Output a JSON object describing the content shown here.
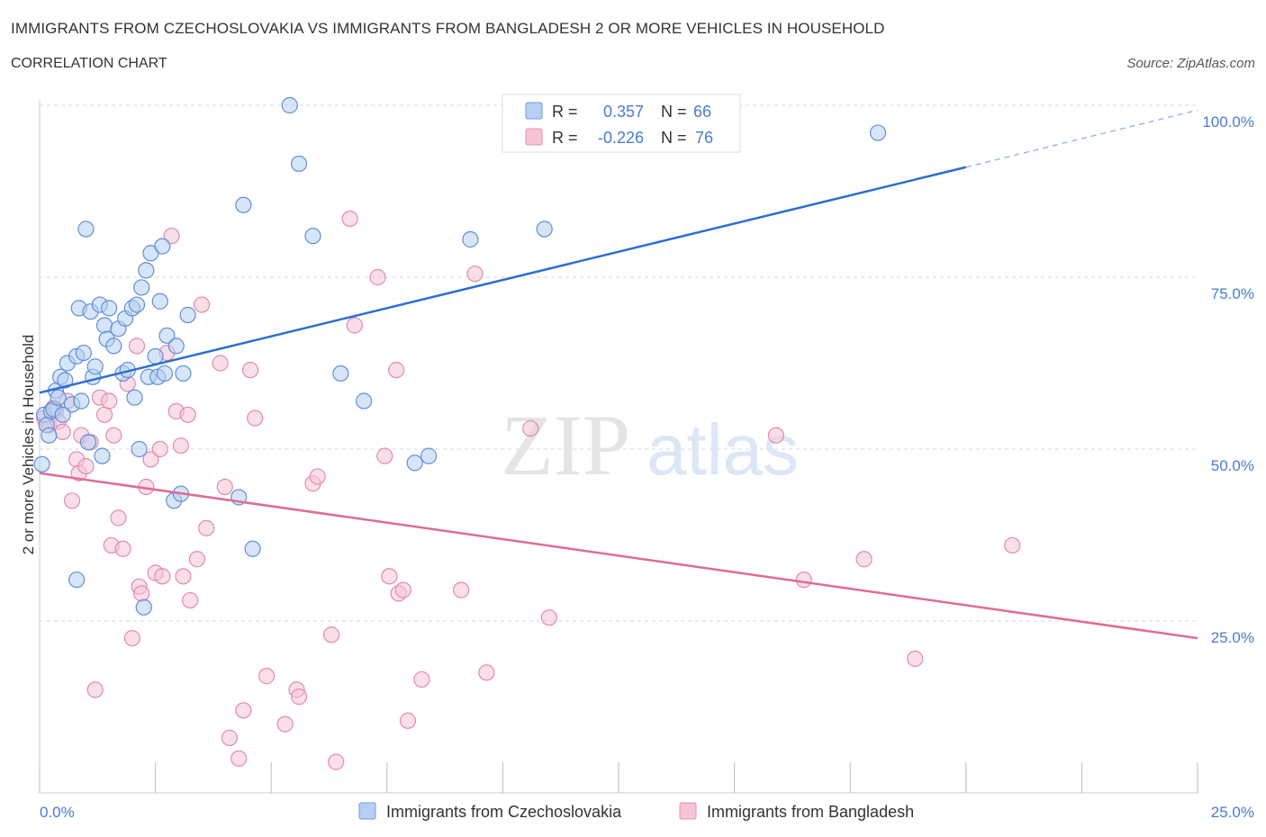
{
  "title": "IMMIGRANTS FROM CZECHOSLOVAKIA VS IMMIGRANTS FROM BANGLADESH 2 OR MORE VEHICLES IN HOUSEHOLD",
  "subtitle": "CORRELATION CHART",
  "source": "Source: ZipAtlas.com",
  "watermark": {
    "zip": "ZIP",
    "atlas": "atlas"
  },
  "colors": {
    "blue": "#4a7bd0",
    "blue_fill": "#b7cff3",
    "blue_line": "#2d6fcf",
    "pink": "#e06b98",
    "pink_fill": "#f6c4d5",
    "grid": "#d8d8d8"
  },
  "legend": {
    "r_label": "R =",
    "n_label": "N =",
    "rows": [
      {
        "r": "0.357",
        "n": "66"
      },
      {
        "r": "-0.226",
        "n": "76"
      }
    ]
  },
  "chart_data": {
    "type": "scatter",
    "ylabel": "2 or more Vehicles in Household",
    "xlim": [
      0,
      25
    ],
    "ylim": [
      0,
      100
    ],
    "x_ticks": [
      "0.0%",
      "25.0%"
    ],
    "y_ticks": [
      "25.0%",
      "50.0%",
      "75.0%",
      "100.0%"
    ],
    "y_tick_values": [
      25,
      50,
      75,
      100
    ],
    "grid": true,
    "legend_position": "top-center",
    "series": [
      {
        "name": "Immigrants from Czechoslovakia",
        "color": "#4a7bd0",
        "trend": {
          "x0": 0,
          "y0": 58.2,
          "x1": 20,
          "y1": 91.0,
          "dashed_to_x": 25,
          "dashed_to_y": 99.3
        },
        "points": [
          [
            0.05,
            47.8
          ],
          [
            0.1,
            55.0
          ],
          [
            0.15,
            53.5
          ],
          [
            0.2,
            52.0
          ],
          [
            0.25,
            55.5
          ],
          [
            0.3,
            55.8
          ],
          [
            0.35,
            58.5
          ],
          [
            0.4,
            57.5
          ],
          [
            0.45,
            60.5
          ],
          [
            0.55,
            60.0
          ],
          [
            0.6,
            62.5
          ],
          [
            0.7,
            56.5
          ],
          [
            0.8,
            63.5
          ],
          [
            0.85,
            70.5
          ],
          [
            0.9,
            57.0
          ],
          [
            0.95,
            64.0
          ],
          [
            1.0,
            82.0
          ],
          [
            1.05,
            51.0
          ],
          [
            1.1,
            70.0
          ],
          [
            1.15,
            60.5
          ],
          [
            1.2,
            62.0
          ],
          [
            1.3,
            71.0
          ],
          [
            1.35,
            49.0
          ],
          [
            1.4,
            68.0
          ],
          [
            1.45,
            66.0
          ],
          [
            1.5,
            70.5
          ],
          [
            1.6,
            65.0
          ],
          [
            1.7,
            67.5
          ],
          [
            1.8,
            61.0
          ],
          [
            1.85,
            69.0
          ],
          [
            1.9,
            61.5
          ],
          [
            2.0,
            70.5
          ],
          [
            2.05,
            57.5
          ],
          [
            2.1,
            71.0
          ],
          [
            2.15,
            50.0
          ],
          [
            2.2,
            73.5
          ],
          [
            2.3,
            76.0
          ],
          [
            2.35,
            60.5
          ],
          [
            2.4,
            78.5
          ],
          [
            2.5,
            63.5
          ],
          [
            2.55,
            60.5
          ],
          [
            2.6,
            71.5
          ],
          [
            2.65,
            79.5
          ],
          [
            2.7,
            61.0
          ],
          [
            2.75,
            66.5
          ],
          [
            2.9,
            42.5
          ],
          [
            2.95,
            65.0
          ],
          [
            3.05,
            43.5
          ],
          [
            3.1,
            61.0
          ],
          [
            3.2,
            69.5
          ],
          [
            4.3,
            43.0
          ],
          [
            4.4,
            85.5
          ],
          [
            4.6,
            35.5
          ],
          [
            5.4,
            100.0
          ],
          [
            5.6,
            91.5
          ],
          [
            5.9,
            81.0
          ],
          [
            6.5,
            61.0
          ],
          [
            7.0,
            57.0
          ],
          [
            8.1,
            48.0
          ],
          [
            8.4,
            49.0
          ],
          [
            9.3,
            80.5
          ],
          [
            10.9,
            82.0
          ],
          [
            18.1,
            96.0
          ],
          [
            0.8,
            31.0
          ],
          [
            2.25,
            27.0
          ],
          [
            0.5,
            55.0
          ]
        ]
      },
      {
        "name": "Immigrants from Bangladesh",
        "color": "#e06b98",
        "trend": {
          "x0": 0,
          "y0": 46.5,
          "x1": 25,
          "y1": 22.5
        },
        "points": [
          [
            0.1,
            54.5
          ],
          [
            0.2,
            53.5
          ],
          [
            0.3,
            56.0
          ],
          [
            0.35,
            55.5
          ],
          [
            0.4,
            54.0
          ],
          [
            0.5,
            52.5
          ],
          [
            0.6,
            57.0
          ],
          [
            0.7,
            42.5
          ],
          [
            0.8,
            48.5
          ],
          [
            0.85,
            46.5
          ],
          [
            0.9,
            52.0
          ],
          [
            1.0,
            47.5
          ],
          [
            1.1,
            51.0
          ],
          [
            1.2,
            15.0
          ],
          [
            1.3,
            57.5
          ],
          [
            1.4,
            55.0
          ],
          [
            1.5,
            57.0
          ],
          [
            1.55,
            36.0
          ],
          [
            1.6,
            52.0
          ],
          [
            1.7,
            40.0
          ],
          [
            1.8,
            35.5
          ],
          [
            1.9,
            59.5
          ],
          [
            2.0,
            22.5
          ],
          [
            2.1,
            65.0
          ],
          [
            2.15,
            30.0
          ],
          [
            2.2,
            29.0
          ],
          [
            2.3,
            44.5
          ],
          [
            2.4,
            48.5
          ],
          [
            2.5,
            32.0
          ],
          [
            2.6,
            50.0
          ],
          [
            2.65,
            31.5
          ],
          [
            2.75,
            64.0
          ],
          [
            2.85,
            81.0
          ],
          [
            2.95,
            55.5
          ],
          [
            3.05,
            50.5
          ],
          [
            3.1,
            31.5
          ],
          [
            3.2,
            55.0
          ],
          [
            3.25,
            28.0
          ],
          [
            3.4,
            34.0
          ],
          [
            3.5,
            71.0
          ],
          [
            3.6,
            38.5
          ],
          [
            3.9,
            62.5
          ],
          [
            4.0,
            44.5
          ],
          [
            4.1,
            8.0
          ],
          [
            4.3,
            5.0
          ],
          [
            4.4,
            12.0
          ],
          [
            4.55,
            61.5
          ],
          [
            4.65,
            54.5
          ],
          [
            4.9,
            17.0
          ],
          [
            5.3,
            10.0
          ],
          [
            5.55,
            15.0
          ],
          [
            5.6,
            14.0
          ],
          [
            5.9,
            45.0
          ],
          [
            6.0,
            46.0
          ],
          [
            6.3,
            23.0
          ],
          [
            6.4,
            4.5
          ],
          [
            6.7,
            83.5
          ],
          [
            6.8,
            68.0
          ],
          [
            7.3,
            75.0
          ],
          [
            7.45,
            49.0
          ],
          [
            7.55,
            31.5
          ],
          [
            7.7,
            61.5
          ],
          [
            7.75,
            29.0
          ],
          [
            7.85,
            29.5
          ],
          [
            7.95,
            10.5
          ],
          [
            8.25,
            16.5
          ],
          [
            9.1,
            29.5
          ],
          [
            9.4,
            75.5
          ],
          [
            9.65,
            17.5
          ],
          [
            10.6,
            53.0
          ],
          [
            11.0,
            25.5
          ],
          [
            15.9,
            52.0
          ],
          [
            16.5,
            31.0
          ],
          [
            17.8,
            34.0
          ],
          [
            18.9,
            19.5
          ],
          [
            21.0,
            36.0
          ]
        ]
      }
    ]
  }
}
